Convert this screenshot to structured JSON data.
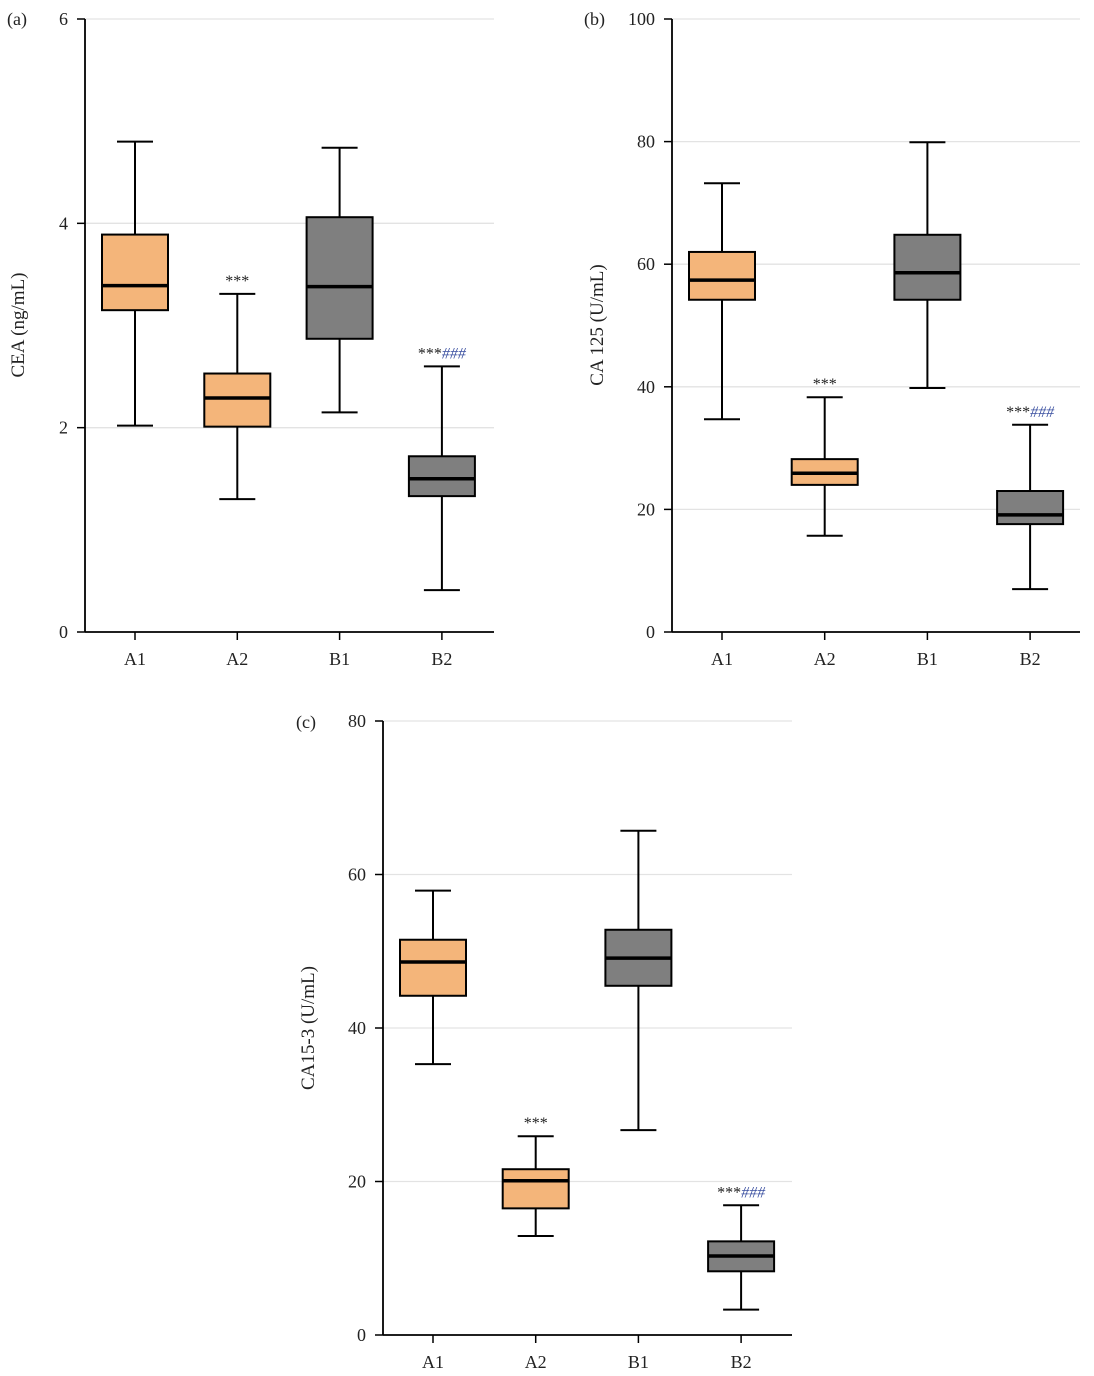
{
  "colors": {
    "A": "#F4B57A",
    "B": "#7F7F7F",
    "grid": "#e3e3e3",
    "axis": "#000000",
    "hash": "#3a4fa0"
  },
  "chart_data": [
    {
      "type": "box",
      "panel": "(a)",
      "ylabel": "CEA (ng/mL)",
      "ylim": [
        0,
        6
      ],
      "yticks": [
        0,
        2,
        4,
        6
      ],
      "grid": true,
      "categories": [
        "A1",
        "A2",
        "B1",
        "B2"
      ],
      "groups": [
        "A",
        "A",
        "B",
        "B"
      ],
      "boxes": [
        {
          "min": 2.02,
          "q1": 3.15,
          "median": 3.39,
          "q3": 3.89,
          "max": 4.8,
          "annotation": "",
          "annotation2": ""
        },
        {
          "min": 1.3,
          "q1": 2.01,
          "median": 2.29,
          "q3": 2.53,
          "max": 3.31,
          "annotation": "***",
          "annotation2": ""
        },
        {
          "min": 2.15,
          "q1": 2.87,
          "median": 3.38,
          "q3": 4.06,
          "max": 4.74,
          "annotation": "",
          "annotation2": ""
        },
        {
          "min": 0.41,
          "q1": 1.33,
          "median": 1.5,
          "q3": 1.72,
          "max": 2.6,
          "annotation": "***",
          "annotation2": "###"
        }
      ]
    },
    {
      "type": "box",
      "panel": "(b)",
      "ylabel": "CA 125 (U/mL)",
      "ylim": [
        0,
        100
      ],
      "yticks": [
        0,
        20,
        40,
        60,
        80,
        100
      ],
      "grid": true,
      "categories": [
        "A1",
        "A2",
        "B1",
        "B2"
      ],
      "groups": [
        "A",
        "A",
        "B",
        "B"
      ],
      "boxes": [
        {
          "min": 34.7,
          "q1": 54.2,
          "median": 57.4,
          "q3": 62.0,
          "max": 73.2,
          "annotation": "",
          "annotation2": ""
        },
        {
          "min": 15.7,
          "q1": 24.0,
          "median": 25.9,
          "q3": 28.2,
          "max": 38.3,
          "annotation": "***",
          "annotation2": ""
        },
        {
          "min": 39.8,
          "q1": 54.2,
          "median": 58.6,
          "q3": 64.8,
          "max": 79.9,
          "annotation": "",
          "annotation2": ""
        },
        {
          "min": 7.0,
          "q1": 17.6,
          "median": 19.1,
          "q3": 23.0,
          "max": 33.8,
          "annotation": "***",
          "annotation2": "###"
        }
      ]
    },
    {
      "type": "box",
      "panel": "(c)",
      "ylabel": "CA15-3 (U/mL)",
      "ylim": [
        0,
        80
      ],
      "yticks": [
        0,
        20,
        40,
        60,
        80
      ],
      "grid": true,
      "categories": [
        "A1",
        "A2",
        "B1",
        "B2"
      ],
      "groups": [
        "A",
        "A",
        "B",
        "B"
      ],
      "boxes": [
        {
          "min": 35.3,
          "q1": 44.2,
          "median": 48.6,
          "q3": 51.5,
          "max": 57.9,
          "annotation": "",
          "annotation2": ""
        },
        {
          "min": 12.9,
          "q1": 16.5,
          "median": 20.1,
          "q3": 21.6,
          "max": 25.9,
          "annotation": "***",
          "annotation2": ""
        },
        {
          "min": 26.7,
          "q1": 45.5,
          "median": 49.1,
          "q3": 52.8,
          "max": 65.7,
          "annotation": "",
          "annotation2": ""
        },
        {
          "min": 3.3,
          "q1": 8.3,
          "median": 10.3,
          "q3": 12.2,
          "max": 16.9,
          "annotation": "***",
          "annotation2": "###"
        }
      ]
    }
  ]
}
